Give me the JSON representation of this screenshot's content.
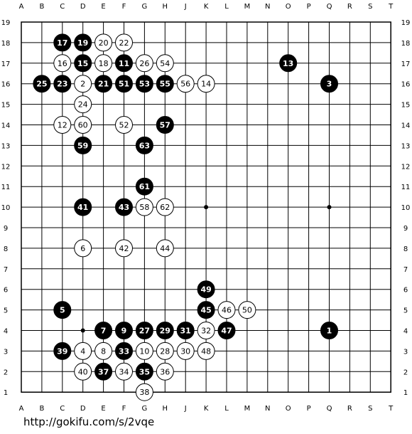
{
  "board": {
    "size": 19,
    "columns": [
      "A",
      "B",
      "C",
      "D",
      "E",
      "F",
      "G",
      "H",
      "J",
      "K",
      "L",
      "M",
      "N",
      "O",
      "P",
      "Q",
      "R",
      "S",
      "T"
    ],
    "rows": [
      "19",
      "18",
      "17",
      "16",
      "15",
      "14",
      "13",
      "12",
      "11",
      "10",
      "9",
      "8",
      "7",
      "6",
      "5",
      "4",
      "3",
      "2",
      "1"
    ],
    "star_points": [
      "D4",
      "K10",
      "Q10"
    ],
    "moves": [
      {
        "n": "1",
        "color": "black",
        "pt": "Q4"
      },
      {
        "n": "2",
        "color": "white",
        "pt": "D16"
      },
      {
        "n": "3",
        "color": "black",
        "pt": "Q16"
      },
      {
        "n": "4",
        "color": "white",
        "pt": "D3"
      },
      {
        "n": "5",
        "color": "black",
        "pt": "C5"
      },
      {
        "n": "6",
        "color": "white",
        "pt": "D8"
      },
      {
        "n": "7",
        "color": "black",
        "pt": "E4"
      },
      {
        "n": "8",
        "color": "white",
        "pt": "E3"
      },
      {
        "n": "9",
        "color": "black",
        "pt": "F4"
      },
      {
        "n": "10",
        "color": "white",
        "pt": "G3"
      },
      {
        "n": "11",
        "color": "black",
        "pt": "F17"
      },
      {
        "n": "12",
        "color": "white",
        "pt": "C14"
      },
      {
        "n": "13",
        "color": "black",
        "pt": "O17"
      },
      {
        "n": "14",
        "color": "white",
        "pt": "K16"
      },
      {
        "n": "15",
        "color": "black",
        "pt": "D17"
      },
      {
        "n": "16",
        "color": "white",
        "pt": "C17"
      },
      {
        "n": "17",
        "color": "black",
        "pt": "C18"
      },
      {
        "n": "18",
        "color": "white",
        "pt": "E17"
      },
      {
        "n": "19",
        "color": "black",
        "pt": "D18"
      },
      {
        "n": "20",
        "color": "white",
        "pt": "E18"
      },
      {
        "n": "21",
        "color": "black",
        "pt": "E16"
      },
      {
        "n": "22",
        "color": "white",
        "pt": "F18"
      },
      {
        "n": "23",
        "color": "black",
        "pt": "C16"
      },
      {
        "n": "24",
        "color": "white",
        "pt": "D15"
      },
      {
        "n": "25",
        "color": "black",
        "pt": "B16"
      },
      {
        "n": "26",
        "color": "white",
        "pt": "G17"
      },
      {
        "n": "27",
        "color": "black",
        "pt": "G4"
      },
      {
        "n": "28",
        "color": "white",
        "pt": "H3"
      },
      {
        "n": "29",
        "color": "black",
        "pt": "H4"
      },
      {
        "n": "30",
        "color": "white",
        "pt": "J3"
      },
      {
        "n": "31",
        "color": "black",
        "pt": "J4"
      },
      {
        "n": "32",
        "color": "white",
        "pt": "K4"
      },
      {
        "n": "33",
        "color": "black",
        "pt": "F3"
      },
      {
        "n": "34",
        "color": "white",
        "pt": "F2"
      },
      {
        "n": "35",
        "color": "black",
        "pt": "G2"
      },
      {
        "n": "36",
        "color": "white",
        "pt": "H2"
      },
      {
        "n": "37",
        "color": "black",
        "pt": "E2"
      },
      {
        "n": "38",
        "color": "white",
        "pt": "G1"
      },
      {
        "n": "39",
        "color": "black",
        "pt": "C3"
      },
      {
        "n": "40",
        "color": "white",
        "pt": "D2"
      },
      {
        "n": "41",
        "color": "black",
        "pt": "D10"
      },
      {
        "n": "42",
        "color": "white",
        "pt": "F8"
      },
      {
        "n": "43",
        "color": "black",
        "pt": "F10"
      },
      {
        "n": "44",
        "color": "white",
        "pt": "H8"
      },
      {
        "n": "45",
        "color": "black",
        "pt": "K5"
      },
      {
        "n": "46",
        "color": "white",
        "pt": "L5"
      },
      {
        "n": "47",
        "color": "black",
        "pt": "L4"
      },
      {
        "n": "48",
        "color": "white",
        "pt": "K3"
      },
      {
        "n": "49",
        "color": "black",
        "pt": "K6"
      },
      {
        "n": "50",
        "color": "white",
        "pt": "M5"
      },
      {
        "n": "51",
        "color": "black",
        "pt": "F16"
      },
      {
        "n": "52",
        "color": "white",
        "pt": "F14"
      },
      {
        "n": "53",
        "color": "black",
        "pt": "G16"
      },
      {
        "n": "54",
        "color": "white",
        "pt": "H17"
      },
      {
        "n": "55",
        "color": "black",
        "pt": "H16"
      },
      {
        "n": "56",
        "color": "white",
        "pt": "J16"
      },
      {
        "n": "57",
        "color": "black",
        "pt": "H14"
      },
      {
        "n": "58",
        "color": "white",
        "pt": "G10"
      },
      {
        "n": "59",
        "color": "black",
        "pt": "D13"
      },
      {
        "n": "60",
        "color": "white",
        "pt": "D14"
      },
      {
        "n": "61",
        "color": "black",
        "pt": "G11"
      },
      {
        "n": "62",
        "color": "white",
        "pt": "H10"
      },
      {
        "n": "63",
        "color": "black",
        "pt": "G13"
      }
    ]
  },
  "footer": {
    "url": "http://gokifu.com/s/2vqe"
  }
}
